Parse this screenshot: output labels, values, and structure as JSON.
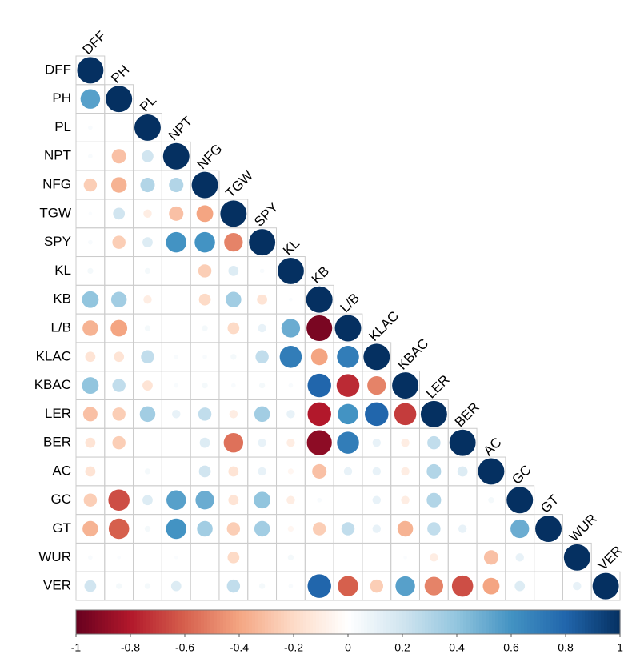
{
  "chart_data": {
    "type": "corrplot",
    "variables": [
      "DFF",
      "PH",
      "PL",
      "NPT",
      "NFG",
      "TGW",
      "SPY",
      "KL",
      "KB",
      "L/B",
      "KLAC",
      "KBAC",
      "LER",
      "BER",
      "AC",
      "GC",
      "GT",
      "WUR",
      "VER"
    ],
    "matrix": [
      [
        1
      ],
      [
        0.55,
        1
      ],
      [
        0.03,
        0,
        1
      ],
      [
        0.03,
        -0.3,
        0.2,
        1
      ],
      [
        -0.25,
        -0.35,
        0.3,
        0.3,
        1
      ],
      [
        0.02,
        0.2,
        -0.1,
        -0.3,
        -0.4,
        1
      ],
      [
        0.03,
        -0.25,
        0.15,
        0.6,
        0.6,
        -0.5,
        1
      ],
      [
        0.05,
        0,
        0.05,
        0,
        -0.25,
        0.15,
        0.03,
        1
      ],
      [
        0.4,
        0.35,
        -0.1,
        0,
        -0.2,
        0.35,
        -0.15,
        0.02,
        1
      ],
      [
        -0.35,
        -0.4,
        0.05,
        0,
        0.05,
        -0.2,
        0.1,
        0.5,
        -0.95,
        1
      ],
      [
        -0.15,
        -0.15,
        0.25,
        0.03,
        0.03,
        0.05,
        0.25,
        0.7,
        -0.4,
        0.7,
        1
      ],
      [
        0.4,
        0.25,
        -0.15,
        0.03,
        0.05,
        0.03,
        0.05,
        0.03,
        0.8,
        -0.75,
        -0.5,
        1
      ],
      [
        -0.3,
        -0.25,
        0.35,
        0.1,
        0.25,
        -0.1,
        0.35,
        0.1,
        -0.8,
        0.6,
        0.8,
        -0.7,
        1
      ],
      [
        -0.15,
        -0.25,
        0,
        0,
        0.15,
        -0.55,
        0.1,
        -0.1,
        -0.9,
        0.7,
        0.1,
        -0.1,
        0.25,
        1
      ],
      [
        -0.15,
        0,
        0.05,
        0,
        0.2,
        -0.15,
        0.1,
        -0.05,
        -0.3,
        0.1,
        0.1,
        -0.1,
        0.3,
        0.15,
        1
      ],
      [
        -0.25,
        -0.65,
        0.15,
        0.55,
        0.5,
        -0.15,
        0.4,
        -0.1,
        0.03,
        0,
        0.1,
        -0.1,
        0.3,
        0,
        0.05,
        1
      ],
      [
        -0.35,
        -0.6,
        0.05,
        0.6,
        0.35,
        -0.25,
        0.35,
        -0.05,
        -0.25,
        0.25,
        0.1,
        -0.35,
        0.25,
        0.1,
        0,
        0.5,
        1
      ],
      [
        0.03,
        0.02,
        0,
        0.02,
        0,
        -0.2,
        0,
        0.05,
        0,
        0,
        0,
        0.02,
        -0.1,
        0,
        -0.3,
        0.1,
        0,
        1
      ],
      [
        0.2,
        0.05,
        0.05,
        0.15,
        0,
        0.25,
        0.05,
        0.03,
        0.8,
        -0.6,
        -0.25,
        0.55,
        -0.5,
        -0.65,
        -0.4,
        0.15,
        0,
        0.1,
        1
      ]
    ],
    "clim": [
      -1,
      1
    ],
    "colorbar_ticks": [
      -1,
      -0.8,
      -0.6,
      -0.4,
      -0.2,
      0,
      0.2,
      0.4,
      0.6,
      0.8,
      1
    ],
    "colormap": [
      "#67001F",
      "#B2182B",
      "#D6604D",
      "#F4A582",
      "#FDDBC7",
      "#FFFFFF",
      "#D1E5F0",
      "#92C5DE",
      "#4393C3",
      "#2166AC",
      "#053061"
    ]
  }
}
